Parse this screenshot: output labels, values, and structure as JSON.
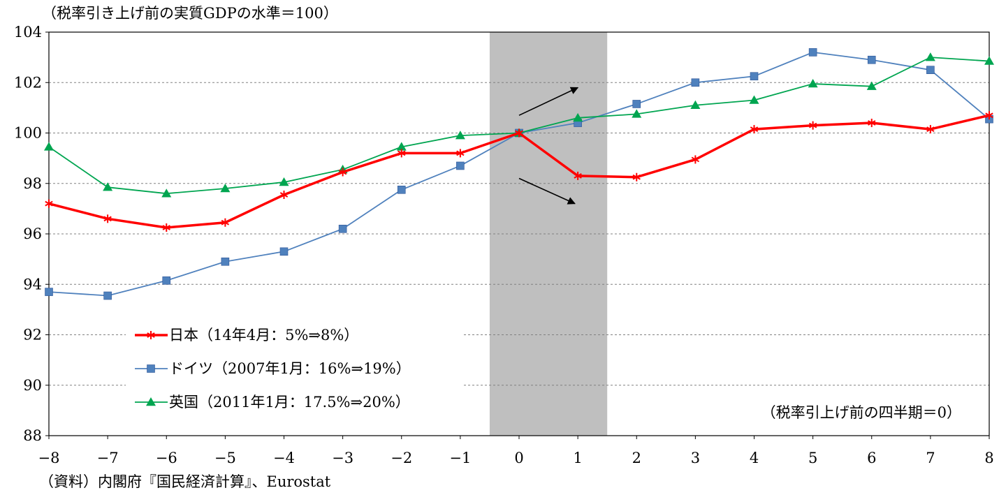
{
  "chart_data": {
    "type": "line",
    "unit_label": "（税率引き上げ前の実質GDPの水準＝100）",
    "xaxis_note": "（税率引上げ前の四半期＝0）",
    "source": "（資料）内閣府『国民経済計算』、Eurostat",
    "x": [
      -8,
      -7,
      -6,
      -5,
      -4,
      -3,
      -2,
      -1,
      0,
      1,
      2,
      3,
      4,
      5,
      6,
      7,
      8
    ],
    "x_tick_labels": [
      "−8",
      "−7",
      "−6",
      "−5",
      "−4",
      "−3",
      "−2",
      "−1",
      "0",
      "1",
      "2",
      "3",
      "4",
      "5",
      "6",
      "7",
      "8"
    ],
    "xlim": [
      -8,
      8
    ],
    "ylim": [
      88,
      104
    ],
    "y_ticks": [
      88,
      90,
      92,
      94,
      96,
      98,
      100,
      102,
      104
    ],
    "y_tick_labels": [
      "88",
      "90",
      "92",
      "94",
      "96",
      "98",
      "100",
      "102",
      "104"
    ],
    "grid": "horizontal-dashed",
    "legend_position": "bottom-left",
    "shaded_region": {
      "x_from": -0.5,
      "x_to": 1.5,
      "color": "#bfbfbf"
    },
    "arrows": [
      {
        "from": [
          0,
          100.7
        ],
        "to": [
          1,
          101.8
        ]
      },
      {
        "from": [
          0,
          98.2
        ],
        "to": [
          0.95,
          97.2
        ]
      }
    ],
    "series": [
      {
        "name": "日本（14年4月：5%⇒8%）",
        "color": "#ff0000",
        "marker": "star",
        "values": [
          97.2,
          96.6,
          96.25,
          96.45,
          97.55,
          98.45,
          99.2,
          99.2,
          100.0,
          98.3,
          98.25,
          98.95,
          100.15,
          100.3,
          100.4,
          100.15,
          100.7
        ]
      },
      {
        "name": "ドイツ（2007年1月：16%⇒19%）",
        "color": "#4f81bd",
        "marker": "square",
        "values": [
          93.7,
          93.55,
          94.15,
          94.9,
          95.3,
          96.2,
          97.75,
          98.7,
          100.0,
          100.4,
          101.15,
          102.0,
          102.25,
          103.2,
          102.9,
          102.5,
          100.55
        ]
      },
      {
        "name": "英国（2011年1月：17.5%⇒20%）",
        "color": "#00a550",
        "marker": "triangle",
        "values": [
          99.45,
          97.85,
          97.6,
          97.8,
          98.05,
          98.55,
          99.45,
          99.9,
          100.0,
          100.6,
          100.75,
          101.1,
          101.3,
          101.95,
          101.85,
          103.0,
          102.85
        ]
      }
    ]
  }
}
